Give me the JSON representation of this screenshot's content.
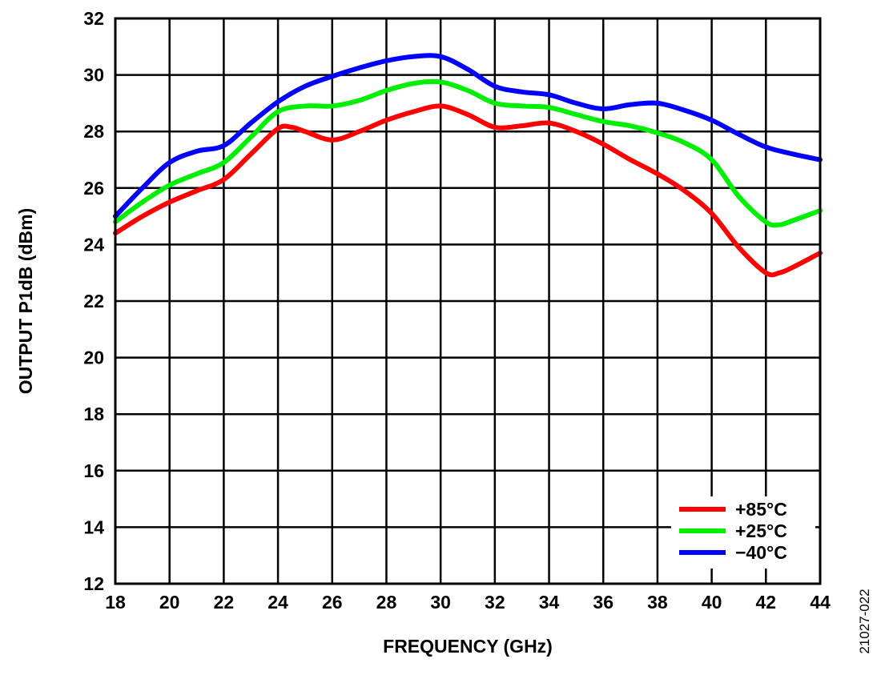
{
  "chart_data": {
    "type": "line",
    "title": "",
    "xlabel": "FREQUENCY (GHz)",
    "ylabel": "OUTPUT P1dB (dBm)",
    "xlim": [
      18,
      44
    ],
    "ylim": [
      12,
      32
    ],
    "xticks": [
      18,
      20,
      22,
      24,
      26,
      28,
      30,
      32,
      34,
      36,
      38,
      40,
      42,
      44
    ],
    "yticks": [
      12,
      14,
      16,
      18,
      20,
      22,
      24,
      26,
      28,
      30,
      32
    ],
    "grid": true,
    "legend_position": "bottom-right",
    "figure_id": "21027-022",
    "series": [
      {
        "name": "+85°C",
        "color": "#ff0000",
        "x": [
          18,
          19,
          20,
          21,
          22,
          23,
          24,
          24.5,
          25,
          26,
          27,
          28,
          29,
          30,
          31,
          32,
          33,
          34,
          35,
          36,
          37,
          38,
          39,
          40,
          41,
          42,
          42.5,
          43,
          44
        ],
        "y": [
          24.4,
          25.0,
          25.5,
          25.9,
          26.3,
          27.2,
          28.1,
          28.15,
          28.0,
          27.7,
          28.0,
          28.4,
          28.7,
          28.9,
          28.6,
          28.15,
          28.2,
          28.3,
          28.0,
          27.55,
          27.0,
          26.5,
          25.9,
          25.1,
          23.9,
          23.0,
          23.0,
          23.2,
          23.7
        ]
      },
      {
        "name": "+25°C",
        "color": "#00ee00",
        "x": [
          18,
          19,
          20,
          21,
          22,
          23,
          24,
          25,
          26,
          27,
          28,
          29,
          30,
          31,
          32,
          33,
          34,
          35,
          36,
          37,
          38,
          39,
          40,
          41,
          42,
          42.5,
          43,
          44
        ],
        "y": [
          24.8,
          25.5,
          26.1,
          26.5,
          26.9,
          27.8,
          28.7,
          28.9,
          28.9,
          29.1,
          29.45,
          29.7,
          29.75,
          29.45,
          29.0,
          28.9,
          28.85,
          28.6,
          28.35,
          28.2,
          27.95,
          27.6,
          27.0,
          25.7,
          24.8,
          24.7,
          24.85,
          25.2
        ]
      },
      {
        "name": "−40°C",
        "color": "#0000ff",
        "x": [
          18,
          19,
          20,
          21,
          22,
          23,
          24,
          25,
          26,
          27,
          28,
          29,
          30,
          31,
          32,
          33,
          34,
          35,
          36,
          37,
          38,
          39,
          40,
          41,
          42,
          43,
          44
        ],
        "y": [
          25.0,
          26.0,
          26.9,
          27.3,
          27.5,
          28.3,
          29.05,
          29.6,
          29.95,
          30.25,
          30.5,
          30.65,
          30.65,
          30.2,
          29.6,
          29.4,
          29.3,
          29.0,
          28.8,
          28.95,
          29.0,
          28.75,
          28.4,
          27.9,
          27.45,
          27.2,
          27.0
        ]
      }
    ]
  }
}
